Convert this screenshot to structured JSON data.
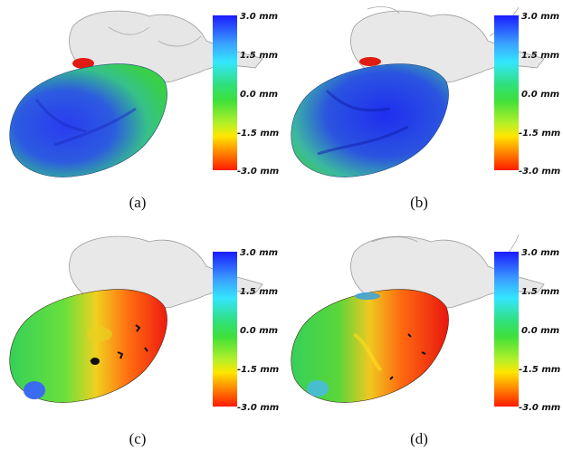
{
  "panels": [
    {
      "caption": "(a)"
    },
    {
      "caption": "(b)"
    },
    {
      "caption": "(c)"
    },
    {
      "caption": "(d)"
    }
  ],
  "colorbar": {
    "ticks": [
      "3.0 mm",
      "1.5 mm",
      "0.0 mm",
      "-1.5 mm",
      "-3.0 mm"
    ],
    "colors": [
      "#1b1bff",
      "#34e6ff",
      "#3ee03a",
      "#ffe600",
      "#ff1a00"
    ]
  }
}
